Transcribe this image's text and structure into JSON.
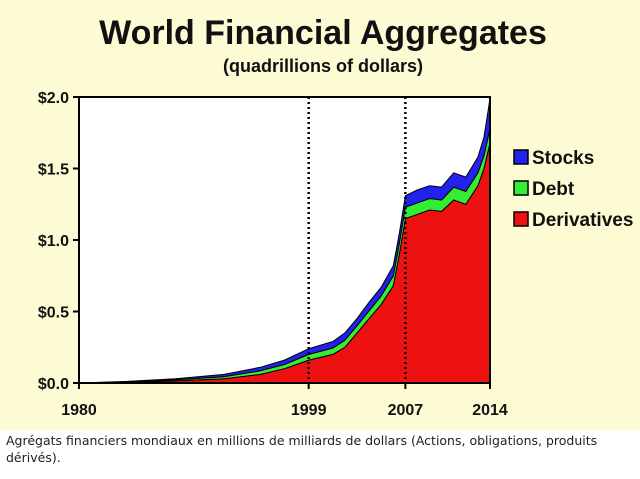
{
  "caption": "Agrégats financiers mondiaux en millions de milliards de dollars (Actions, obligations, produits dérivés).",
  "chart_data": {
    "type": "area",
    "title": "World Financial Aggregates",
    "subtitle": "(quadrillions of dollars)",
    "xlabel": "",
    "ylabel": "",
    "stacked": true,
    "xlim": [
      1980,
      2014
    ],
    "ylim": [
      0,
      2.0
    ],
    "y_ticks": [
      {
        "value": 0.0,
        "label": "$0.0"
      },
      {
        "value": 0.5,
        "label": "$0.5"
      },
      {
        "value": 1.0,
        "label": "$1.0"
      },
      {
        "value": 1.5,
        "label": "$1.5"
      },
      {
        "value": 2.0,
        "label": "$2.0"
      }
    ],
    "x_ticks": [
      {
        "value": 1980,
        "label": "1980"
      },
      {
        "value": 1999,
        "label": "1999"
      },
      {
        "value": 2007,
        "label": "2007"
      },
      {
        "value": 2014,
        "label": "2014"
      }
    ],
    "vlines": [
      1999,
      2007
    ],
    "grid": false,
    "legend_position": "right",
    "x": [
      1980,
      1984,
      1988,
      1992,
      1995,
      1997,
      1999,
      2001,
      2002,
      2003,
      2004,
      2005,
      2006,
      2006.5,
      2007,
      2008,
      2009,
      2010,
      2011,
      2012,
      2013,
      2013.5,
      2014
    ],
    "series": [
      {
        "name": "Derivatives",
        "color": "#ee1111",
        "values": [
          0.0,
          0.005,
          0.015,
          0.03,
          0.06,
          0.1,
          0.16,
          0.2,
          0.25,
          0.35,
          0.45,
          0.55,
          0.68,
          0.9,
          1.15,
          1.18,
          1.21,
          1.2,
          1.28,
          1.25,
          1.38,
          1.5,
          1.68
        ]
      },
      {
        "name": "Debt",
        "color": "#33ee33",
        "values": [
          0.0,
          0.003,
          0.008,
          0.015,
          0.025,
          0.03,
          0.04,
          0.045,
          0.05,
          0.05,
          0.055,
          0.06,
          0.07,
          0.075,
          0.08,
          0.08,
          0.08,
          0.08,
          0.09,
          0.09,
          0.09,
          0.09,
          0.1
        ]
      },
      {
        "name": "Stocks",
        "color": "#2222ee",
        "values": [
          0.0,
          0.003,
          0.007,
          0.015,
          0.025,
          0.03,
          0.04,
          0.045,
          0.05,
          0.05,
          0.06,
          0.06,
          0.07,
          0.07,
          0.08,
          0.09,
          0.09,
          0.09,
          0.1,
          0.1,
          0.11,
          0.13,
          0.21
        ]
      }
    ]
  }
}
